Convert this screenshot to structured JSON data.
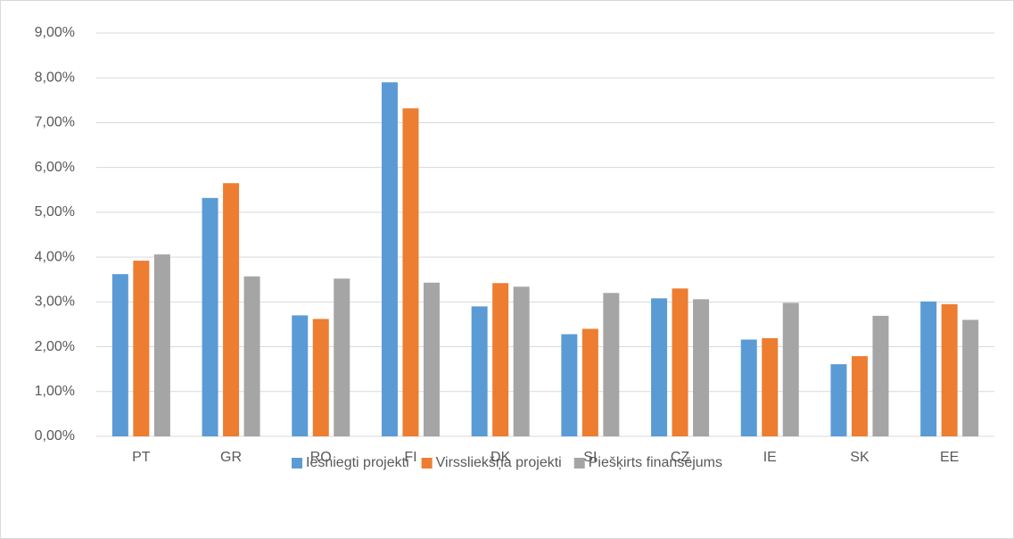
{
  "chart_data": {
    "type": "bar",
    "categories": [
      "PT",
      "GR",
      "RO",
      "FI",
      "DK",
      "SI",
      "CZ",
      "IE",
      "SK",
      "EE"
    ],
    "series": [
      {
        "name": "Iesniegti projekti",
        "color": "#5b9bd5",
        "values": [
          3.62,
          5.32,
          2.7,
          7.9,
          2.9,
          2.28,
          3.08,
          2.16,
          1.61,
          3.01
        ]
      },
      {
        "name": "Virssliekšņa projekti",
        "color": "#ed7d31",
        "values": [
          3.92,
          5.65,
          2.62,
          7.32,
          3.42,
          2.4,
          3.3,
          2.19,
          1.79,
          2.95
        ]
      },
      {
        "name": "Piešķirts finansējums",
        "color": "#a5a5a5",
        "values": [
          4.06,
          3.57,
          3.52,
          3.43,
          3.34,
          3.2,
          3.06,
          2.98,
          2.69,
          2.6
        ]
      }
    ],
    "ylim": [
      0,
      9
    ],
    "yticks": [
      {
        "value": 0,
        "label": "0,00%"
      },
      {
        "value": 1,
        "label": "1,00%"
      },
      {
        "value": 2,
        "label": "2,00%"
      },
      {
        "value": 3,
        "label": "3,00%"
      },
      {
        "value": 4,
        "label": "4,00%"
      },
      {
        "value": 5,
        "label": "5,00%"
      },
      {
        "value": 6,
        "label": "6,00%"
      },
      {
        "value": 7,
        "label": "7,00%"
      },
      {
        "value": 8,
        "label": "8,00%"
      },
      {
        "value": 9,
        "label": "9,00%"
      }
    ],
    "grid": true,
    "legend": "bottom"
  }
}
